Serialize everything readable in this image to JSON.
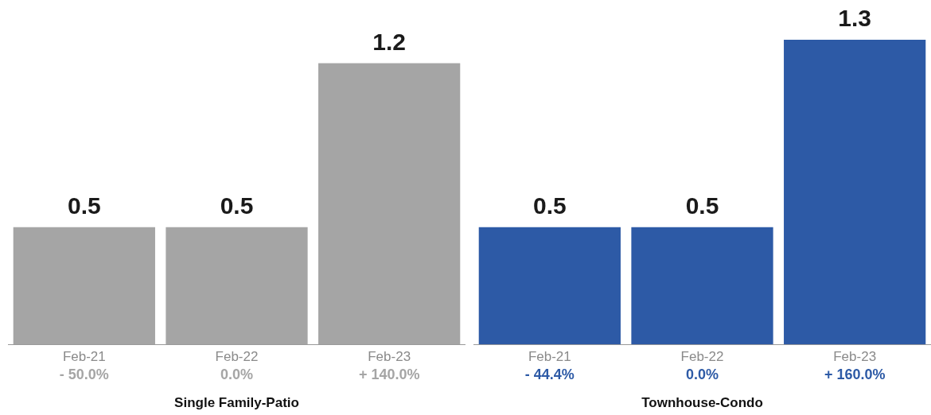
{
  "chart_data": [
    {
      "type": "bar",
      "xlabel": "Single Family-Patio",
      "categories": [
        "Feb-21",
        "Feb-22",
        "Feb-23"
      ],
      "values": [
        0.5,
        0.5,
        1.2
      ],
      "color": "#a5a5a5",
      "data_labels": true,
      "grid": false,
      "legend": false,
      "annotations": [
        "- 50.0%",
        "0.0%",
        "+ 140.0%"
      ]
    },
    {
      "type": "bar",
      "xlabel": "Townhouse-Condo",
      "categories": [
        "Feb-21",
        "Feb-22",
        "Feb-23"
      ],
      "values": [
        0.5,
        0.5,
        1.3
      ],
      "color": "#2d5aa6",
      "data_labels": true,
      "grid": false,
      "legend": false,
      "annotations": [
        "- 44.4%",
        "0.0%",
        "+ 160.0%"
      ]
    }
  ]
}
